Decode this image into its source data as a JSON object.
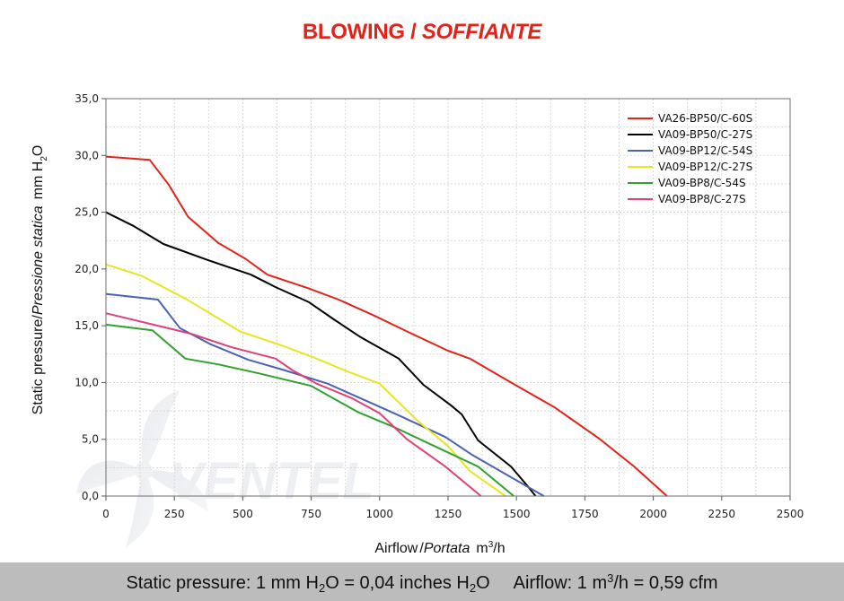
{
  "header": {
    "title_main": "BLOWING /",
    "title_italic": "SOFFIANTE"
  },
  "watermark": {
    "text": "VENTEL"
  },
  "footer": {
    "pressure_a": "Static pressure: 1 mm H",
    "pressure_sub1": "2",
    "pressure_b": "O = 0,04 inches H",
    "pressure_sub2": "2",
    "pressure_c": "O",
    "airflow_a": "Airflow: 1 m",
    "airflow_sup": "3",
    "airflow_b": "/h = 0,59 cfm"
  },
  "chart_data": {
    "type": "line",
    "title": "BLOWING / SOFFIANTE",
    "xlabel": "Airflow / Portata m³/h",
    "ylabel": "Static pressure / Pressione statica mm H₂O",
    "xlabel_parts": {
      "en": "Airflow",
      "sep": "/",
      "it": "Portata",
      "unit": "m",
      "unit_sup": "3",
      "unit_tail": "/h"
    },
    "ylabel_parts": {
      "en": "Static pressure",
      "sep": "/",
      "it": "Pressione statica",
      "unit": "mm  H",
      "unit_sub": "2",
      "unit_tail": "O"
    },
    "xlim": [
      0,
      2500
    ],
    "ylim": [
      0,
      35
    ],
    "x_ticks": [
      "0",
      "250",
      "500",
      "750",
      "1000",
      "1250",
      "1500",
      "1750",
      "2000",
      "2250",
      "2500"
    ],
    "y_ticks": [
      "0,0",
      "5,0",
      "10,0",
      "15,0",
      "20,0",
      "25,0",
      "30,0",
      "35,0"
    ],
    "grid": true,
    "legend_position": "top-right",
    "series": [
      {
        "name": "VA26-BP50/C-60S",
        "color": "#e2231a",
        "points": [
          [
            0,
            29.9
          ],
          [
            160,
            29.6
          ],
          [
            230,
            27.4
          ],
          [
            300,
            24.6
          ],
          [
            410,
            22.3
          ],
          [
            510,
            20.9
          ],
          [
            590,
            19.5
          ],
          [
            740,
            18.3
          ],
          [
            850,
            17.3
          ],
          [
            980,
            15.9
          ],
          [
            1100,
            14.5
          ],
          [
            1250,
            12.8
          ],
          [
            1330,
            12.1
          ],
          [
            1480,
            10.0
          ],
          [
            1640,
            7.8
          ],
          [
            1800,
            5.1
          ],
          [
            1930,
            2.6
          ],
          [
            2050,
            0.0
          ]
        ]
      },
      {
        "name": "VA09-BP50/C-27S",
        "color": "#000000",
        "points": [
          [
            0,
            25.0
          ],
          [
            100,
            23.8
          ],
          [
            210,
            22.2
          ],
          [
            370,
            20.8
          ],
          [
            530,
            19.5
          ],
          [
            620,
            18.4
          ],
          [
            740,
            17.1
          ],
          [
            830,
            15.6
          ],
          [
            930,
            14.0
          ],
          [
            1070,
            12.1
          ],
          [
            1160,
            9.8
          ],
          [
            1260,
            8.0
          ],
          [
            1300,
            7.2
          ],
          [
            1360,
            4.9
          ],
          [
            1480,
            2.6
          ],
          [
            1540,
            0.9
          ],
          [
            1570,
            0.0
          ]
        ]
      },
      {
        "name": "VA09-BP12/C-54S",
        "color": "#4a62b0",
        "points": [
          [
            0,
            17.8
          ],
          [
            190,
            17.3
          ],
          [
            270,
            14.8
          ],
          [
            380,
            13.4
          ],
          [
            520,
            12.0
          ],
          [
            650,
            11.1
          ],
          [
            810,
            9.9
          ],
          [
            950,
            8.4
          ],
          [
            1080,
            7.0
          ],
          [
            1240,
            5.2
          ],
          [
            1340,
            3.6
          ],
          [
            1470,
            1.8
          ],
          [
            1600,
            0.0
          ]
        ]
      },
      {
        "name": "VA09-BP12/C-27S",
        "color": "#e6e622",
        "points": [
          [
            0,
            20.4
          ],
          [
            130,
            19.4
          ],
          [
            290,
            17.4
          ],
          [
            400,
            15.8
          ],
          [
            490,
            14.5
          ],
          [
            650,
            13.2
          ],
          [
            770,
            12.1
          ],
          [
            880,
            11.0
          ],
          [
            1000,
            9.9
          ],
          [
            1030,
            9.2
          ],
          [
            1140,
            6.6
          ],
          [
            1250,
            4.4
          ],
          [
            1330,
            2.2
          ],
          [
            1460,
            0.0
          ]
        ]
      },
      {
        "name": "VA09-BP8/C-54S",
        "color": "#30a030",
        "points": [
          [
            0,
            15.1
          ],
          [
            170,
            14.6
          ],
          [
            290,
            12.1
          ],
          [
            410,
            11.6
          ],
          [
            560,
            10.8
          ],
          [
            750,
            9.7
          ],
          [
            920,
            7.4
          ],
          [
            1060,
            6.0
          ],
          [
            1200,
            4.4
          ],
          [
            1360,
            2.6
          ],
          [
            1490,
            0.0
          ]
        ]
      },
      {
        "name": "VA09-BP8/C-27S",
        "color": "#e0407a",
        "points": [
          [
            0,
            16.1
          ],
          [
            190,
            15.0
          ],
          [
            310,
            14.3
          ],
          [
            460,
            13.1
          ],
          [
            620,
            12.1
          ],
          [
            680,
            11.1
          ],
          [
            770,
            9.9
          ],
          [
            900,
            8.6
          ],
          [
            1000,
            7.3
          ],
          [
            1100,
            5.0
          ],
          [
            1240,
            2.6
          ],
          [
            1370,
            0.0
          ]
        ]
      }
    ]
  }
}
